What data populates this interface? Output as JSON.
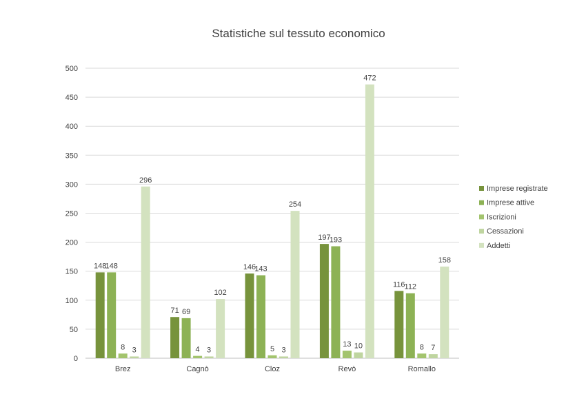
{
  "chart_data": {
    "type": "bar",
    "title": "Statistiche sul tessuto economico",
    "xlabel": "",
    "ylabel": "",
    "categories": [
      "Brez",
      "Cagnò",
      "Cloz",
      "Revò",
      "Romallo"
    ],
    "series": [
      {
        "name": "Imprese registrate",
        "color": "#77933c",
        "values": [
          148,
          71,
          146,
          197,
          116
        ]
      },
      {
        "name": "Imprese attive",
        "color": "#8db255",
        "values": [
          148,
          69,
          143,
          193,
          112
        ]
      },
      {
        "name": "Iscrizioni",
        "color": "#a3c46e",
        "values": [
          8,
          4,
          5,
          13,
          8
        ]
      },
      {
        "name": "Cessazioni",
        "color": "#bfd5a0",
        "values": [
          3,
          3,
          3,
          10,
          7
        ]
      },
      {
        "name": "Addetti",
        "color": "#d3e2bf",
        "values": [
          296,
          102,
          254,
          472,
          158
        ]
      }
    ],
    "ylim": [
      0,
      500
    ],
    "yticks": [
      0,
      50,
      100,
      150,
      200,
      250,
      300,
      350,
      400,
      450,
      500
    ],
    "grid": true,
    "legend": "right"
  }
}
